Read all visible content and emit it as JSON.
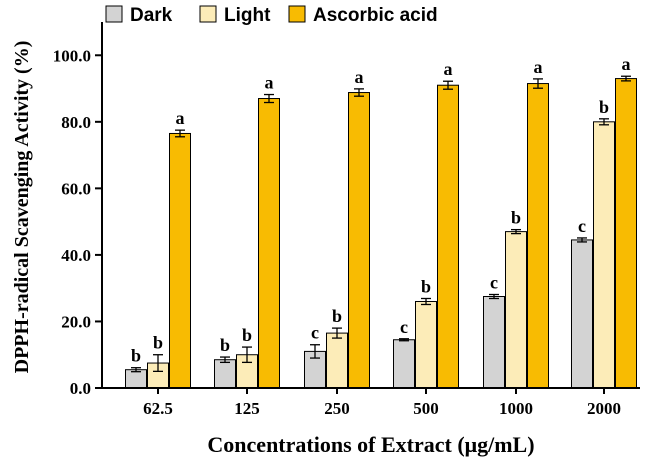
{
  "chart_data": {
    "type": "bar",
    "xlabel": "Concentrations of Extract (μg/mL)",
    "ylabel": "DPPH-radical Scavenging Activity (%)",
    "ylim": [
      0,
      110
    ],
    "yticks": [
      "0.0",
      "20.0",
      "40.0",
      "60.0",
      "80.0",
      "100.0"
    ],
    "categories": [
      "62.5",
      "125",
      "250",
      "500",
      "1000",
      "2000"
    ],
    "legend_position": "top",
    "series": [
      {
        "name": "Dark",
        "color": "#d3d3d3",
        "values": [
          5.5,
          8.5,
          11.0,
          14.5,
          27.5,
          44.5
        ],
        "errors": [
          0.6,
          0.8,
          2.0,
          0.3,
          0.6,
          0.6
        ],
        "labels": [
          "b",
          "b",
          "c",
          "c",
          "c",
          "c"
        ]
      },
      {
        "name": "Light",
        "color": "#fcecb8",
        "values": [
          7.5,
          10.0,
          16.5,
          26.0,
          47.0,
          80.0
        ],
        "errors": [
          2.5,
          2.3,
          1.5,
          0.9,
          0.6,
          0.9
        ],
        "labels": [
          "b",
          "b",
          "b",
          "b",
          "b",
          "b"
        ]
      },
      {
        "name": "Ascorbic acid",
        "color": "#f8bb02",
        "values": [
          76.5,
          87.0,
          88.8,
          91.0,
          91.5,
          93.0
        ],
        "errors": [
          1.0,
          1.2,
          1.1,
          1.2,
          1.4,
          0.7
        ],
        "labels": [
          "a",
          "a",
          "a",
          "a",
          "a",
          "a"
        ]
      }
    ]
  }
}
